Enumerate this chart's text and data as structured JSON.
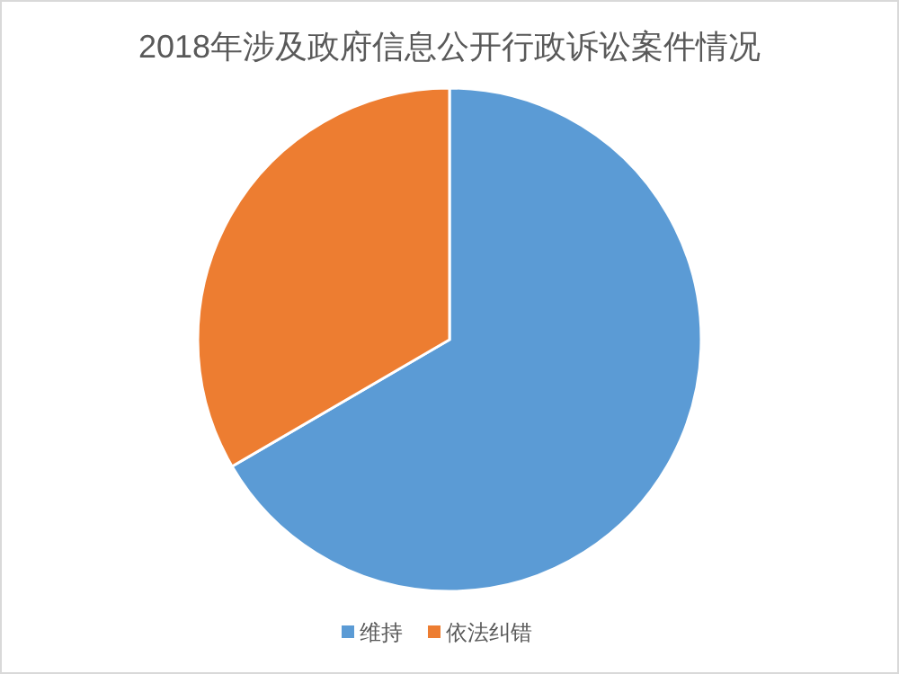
{
  "chart_data": {
    "type": "pie",
    "title": "2018年涉及政府信息公开行政诉讼案件情况",
    "categories": [
      "维持",
      "依法纠错"
    ],
    "values": [
      66.6,
      33.4
    ],
    "colors": [
      "#5b9bd5",
      "#ed7d31"
    ],
    "legend": "bottom"
  }
}
